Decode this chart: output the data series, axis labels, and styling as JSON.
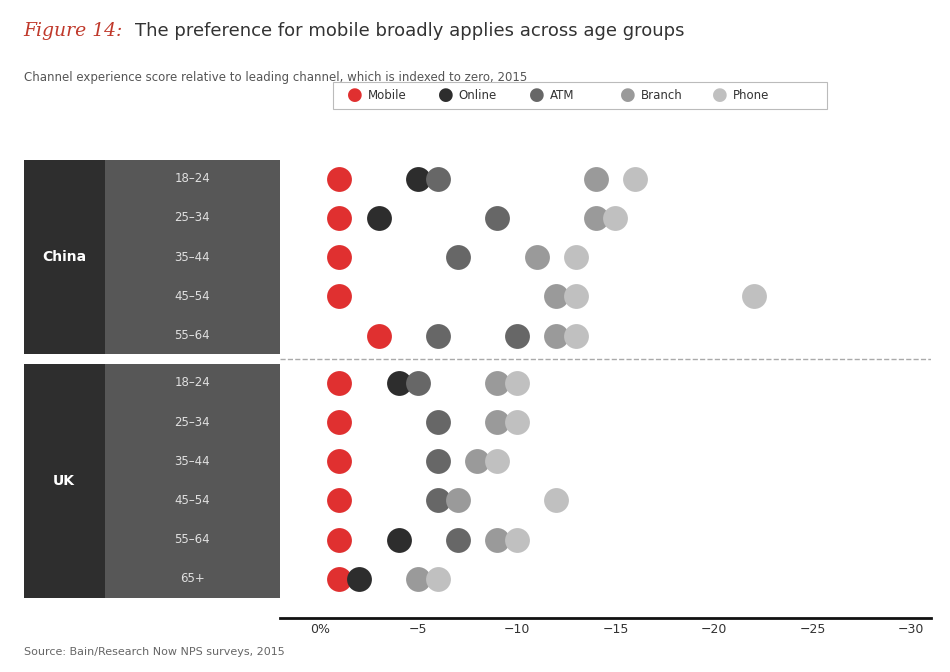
{
  "title_italic": "Figure 14:",
  "title_rest": "The preference for mobile broadly applies across age groups",
  "subtitle": "Channel experience score relative to leading channel, which is indexed to zero, 2015",
  "source": "Source: Bain/Research Now NPS surveys, 2015",
  "legend_items": [
    "Mobile",
    "Online",
    "ATM",
    "Branch",
    "Phone"
  ],
  "legend_colors": [
    "#e03030",
    "#2d2d2d",
    "#676767",
    "#9a9a9a",
    "#c0c0c0"
  ],
  "channel_colors": [
    "#e03030",
    "#2d2d2d",
    "#676767",
    "#9a9a9a",
    "#c0c0c0"
  ],
  "xlim_min": 2,
  "xlim_max": -31,
  "xticks": [
    0,
    -5,
    -10,
    -15,
    -20,
    -25,
    -30
  ],
  "xticklabels": [
    "0%",
    "−5",
    "−10",
    "−15",
    "−20",
    "−25",
    "−30"
  ],
  "dot_size": 320,
  "china_ages": [
    "18–24",
    "25–34",
    "35–44",
    "45–54",
    "55–64"
  ],
  "uk_ages": [
    "18–24",
    "25–34",
    "35–44",
    "45–54",
    "55–64",
    "65+"
  ],
  "china_data": [
    [
      -1,
      -5,
      -6,
      null,
      -14,
      -16
    ],
    [
      -1,
      -3,
      null,
      -9,
      -14,
      -15
    ],
    [
      -1,
      null,
      null,
      -7,
      -11,
      -13
    ],
    [
      -1,
      null,
      null,
      null,
      -12,
      -13
    ],
    [
      -3,
      null,
      -6,
      -10,
      -12,
      -13
    ]
  ],
  "china_extra_dots": [
    [
      null,
      null,
      null,
      null,
      null,
      null
    ],
    [
      null,
      null,
      null,
      null,
      null,
      null
    ],
    [
      null,
      null,
      null,
      null,
      null,
      null
    ],
    [
      null,
      null,
      null,
      null,
      null,
      -22
    ],
    [
      null,
      null,
      null,
      null,
      null,
      null
    ]
  ],
  "uk_data": [
    [
      -1,
      -4,
      -5,
      -9,
      -10,
      null
    ],
    [
      -1,
      null,
      -6,
      -9,
      -10,
      null
    ],
    [
      -1,
      null,
      -6,
      -8,
      -9,
      null
    ],
    [
      -1,
      null,
      -6,
      -7,
      -12,
      null
    ],
    [
      -1,
      -4,
      -7,
      -9,
      -10,
      null
    ],
    [
      -1,
      -2,
      null,
      -5,
      -6,
      null
    ]
  ],
  "background_dark": "#2e2e2e",
  "background_mid": "#575757",
  "ylim_min": 0.3,
  "ylim_max": 12.2
}
